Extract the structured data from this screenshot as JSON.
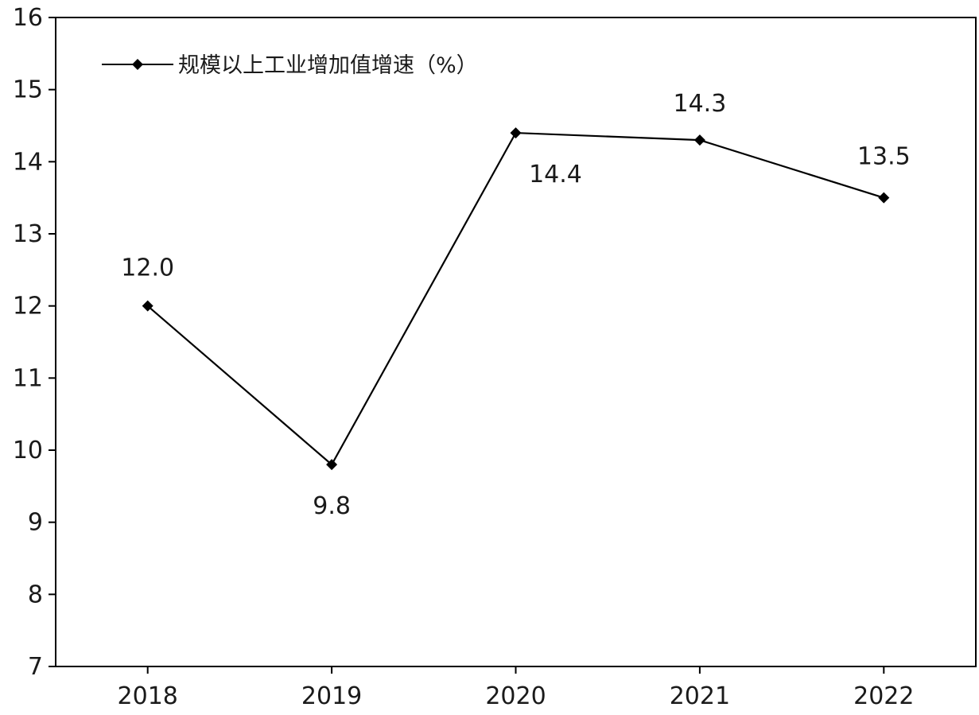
{
  "chart_data": {
    "type": "line",
    "categories": [
      "2018",
      "2019",
      "2020",
      "2021",
      "2022"
    ],
    "series": [
      {
        "name": "规模以上工业增加值增速（%）",
        "values": [
          12.0,
          9.8,
          14.4,
          14.3,
          13.5
        ],
        "data_labels": [
          "12.0",
          "9.8",
          "14.4",
          "14.3",
          "13.5"
        ],
        "color": "#000000",
        "marker": "diamond"
      }
    ],
    "ylim": [
      7,
      16
    ],
    "yticks": [
      7,
      8,
      9,
      10,
      11,
      12,
      13,
      14,
      15,
      16
    ],
    "grid": false,
    "legend": "top-left",
    "title": "",
    "xlabel": "",
    "ylabel": ""
  }
}
